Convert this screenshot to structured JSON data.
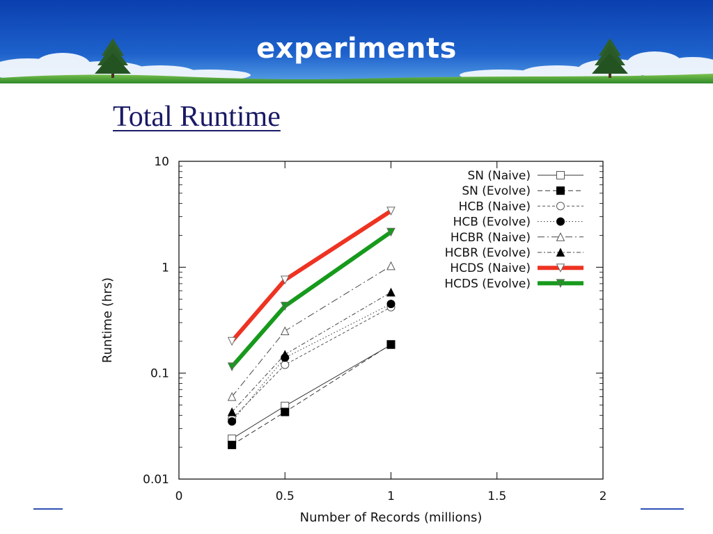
{
  "slide": {
    "title": "experiments",
    "subtitle": "Total Runtime"
  },
  "colors": {
    "banner_top": "#0a3fae",
    "banner_bottom": "#2f7fd8",
    "grass": "#4ea63a",
    "subtitle_color": "#1a1a66",
    "hcds_naive": "#ee3322",
    "hcds_evolve": "#179a1c",
    "footer_line": "#2b4fb5"
  },
  "chart_data": {
    "type": "line",
    "title": "",
    "xlabel": "Number of Records (millions)",
    "ylabel": "Runtime (hrs)",
    "xlim": [
      0,
      2
    ],
    "ylim": [
      0.01,
      10
    ],
    "yscale": "log",
    "xticks": [
      "0",
      "0.5",
      "1",
      "1.5",
      "2"
    ],
    "yticks": [
      "0.01",
      "0.1",
      "1",
      "10"
    ],
    "x": [
      0.25,
      0.5,
      1.0
    ],
    "legend_position": "top-right",
    "grid": false,
    "series": [
      {
        "name": "SN (Naive)",
        "values": [
          0.024,
          0.049,
          0.185
        ],
        "color": "#333333",
        "dash": "solid",
        "marker": "open-square",
        "width": 1
      },
      {
        "name": "SN (Evolve)",
        "values": [
          0.021,
          0.043,
          0.187
        ],
        "color": "#333333",
        "dash": "dashed",
        "marker": "filled-square",
        "width": 1
      },
      {
        "name": "HCB (Naive)",
        "values": [
          0.037,
          0.12,
          0.42
        ],
        "color": "#555555",
        "dash": "dashed-fine",
        "marker": "open-circle",
        "width": 1
      },
      {
        "name": "HCB (Evolve)",
        "values": [
          0.035,
          0.14,
          0.45
        ],
        "color": "#333333",
        "dash": "dotted",
        "marker": "filled-circle",
        "width": 1
      },
      {
        "name": "HCBR (Naive)",
        "values": [
          0.06,
          0.25,
          1.03
        ],
        "color": "#444444",
        "dash": "dash-dot",
        "marker": "open-triangle",
        "width": 1
      },
      {
        "name": "HCBR (Evolve)",
        "values": [
          0.043,
          0.15,
          0.58
        ],
        "color": "#444444",
        "dash": "dash-dot-fine",
        "marker": "filled-triangle",
        "width": 1
      },
      {
        "name": "HCDS (Naive)",
        "values": [
          0.2,
          0.76,
          3.4
        ],
        "color": "#ee3322",
        "dash": "solid",
        "marker": "open-down-triangle",
        "width": 6
      },
      {
        "name": "HCDS (Evolve)",
        "values": [
          0.115,
          0.43,
          2.15
        ],
        "color": "#179a1c",
        "dash": "solid",
        "marker": "filled-down-triangle",
        "width": 6
      }
    ]
  }
}
